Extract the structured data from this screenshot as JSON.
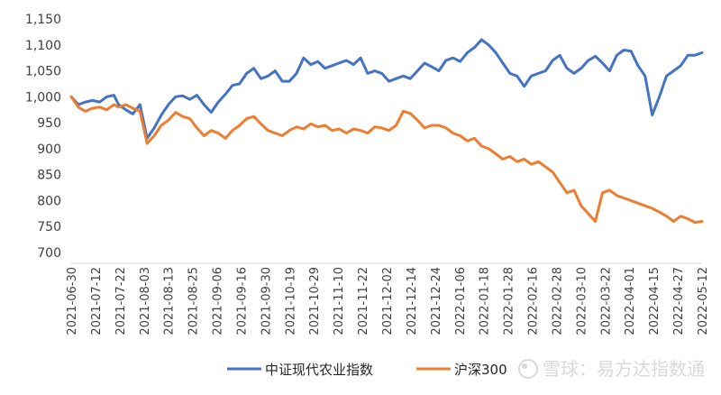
{
  "watermark": {
    "text": "雪球：易方达指数通",
    "icon": "snowball-logo-icon"
  },
  "chart_data": {
    "type": "line",
    "title": "",
    "xlabel": "",
    "ylabel": "",
    "ylim": [
      700,
      1150
    ],
    "yticks": [
      "1,150",
      "1,100",
      "1,050",
      "1,000",
      "950",
      "900",
      "850",
      "800",
      "750",
      "700"
    ],
    "ytick_values": [
      1150,
      1100,
      1050,
      1000,
      950,
      900,
      850,
      800,
      750,
      700
    ],
    "x_tick_labels": [
      "2021-06-30",
      "2021-07-12",
      "2021-07-22",
      "2021-08-03",
      "2021-08-13",
      "2021-08-25",
      "2021-09-06",
      "2021-09-16",
      "2021-09-30",
      "2021-10-19",
      "2021-10-29",
      "2021-11-10",
      "2021-11-22",
      "2021-12-02",
      "2021-12-14",
      "2021-12-24",
      "2022-01-06",
      "2022-01-18",
      "2022-01-28",
      "2022-02-16",
      "2022-02-28",
      "2022-03-10",
      "2022-03-22",
      "2022-04-01",
      "2022-04-15",
      "2022-04-27",
      "2022-05-12"
    ],
    "grid": false,
    "legend_position": "bottom-center",
    "x_range": [
      0,
      26.6
    ],
    "series": [
      {
        "name": "中证现代农业指数",
        "color": "#4472C4",
        "points": [
          [
            0,
            1000
          ],
          [
            0.3,
            985
          ],
          [
            0.6,
            990
          ],
          [
            0.9,
            993
          ],
          [
            1.2,
            990
          ],
          [
            1.5,
            1000
          ],
          [
            1.8,
            1003
          ],
          [
            2.0,
            985
          ],
          [
            2.3,
            975
          ],
          [
            2.6,
            967
          ],
          [
            2.9,
            985
          ],
          [
            3.2,
            920
          ],
          [
            3.5,
            940
          ],
          [
            3.8,
            965
          ],
          [
            4.1,
            985
          ],
          [
            4.4,
            1000
          ],
          [
            4.7,
            1002
          ],
          [
            5.0,
            995
          ],
          [
            5.3,
            1003
          ],
          [
            5.6,
            985
          ],
          [
            5.9,
            970
          ],
          [
            6.2,
            990
          ],
          [
            6.5,
            1005
          ],
          [
            6.8,
            1022
          ],
          [
            7.1,
            1025
          ],
          [
            7.4,
            1045
          ],
          [
            7.7,
            1055
          ],
          [
            8.0,
            1035
          ],
          [
            8.3,
            1040
          ],
          [
            8.6,
            1050
          ],
          [
            8.9,
            1030
          ],
          [
            9.2,
            1030
          ],
          [
            9.5,
            1045
          ],
          [
            9.8,
            1075
          ],
          [
            10.1,
            1062
          ],
          [
            10.4,
            1068
          ],
          [
            10.7,
            1055
          ],
          [
            11.0,
            1060
          ],
          [
            11.3,
            1065
          ],
          [
            11.6,
            1070
          ],
          [
            11.9,
            1062
          ],
          [
            12.2,
            1075
          ],
          [
            12.5,
            1045
          ],
          [
            12.8,
            1050
          ],
          [
            13.1,
            1045
          ],
          [
            13.4,
            1030
          ],
          [
            13.7,
            1035
          ],
          [
            14.0,
            1040
          ],
          [
            14.3,
            1035
          ],
          [
            14.6,
            1050
          ],
          [
            14.9,
            1065
          ],
          [
            15.2,
            1058
          ],
          [
            15.5,
            1050
          ],
          [
            15.8,
            1070
          ],
          [
            16.1,
            1075
          ],
          [
            16.4,
            1068
          ],
          [
            16.7,
            1085
          ],
          [
            17.0,
            1095
          ],
          [
            17.3,
            1110
          ],
          [
            17.6,
            1100
          ],
          [
            17.9,
            1085
          ],
          [
            18.2,
            1065
          ],
          [
            18.5,
            1045
          ],
          [
            18.8,
            1040
          ],
          [
            19.1,
            1020
          ],
          [
            19.4,
            1040
          ],
          [
            19.7,
            1045
          ],
          [
            20.0,
            1050
          ],
          [
            20.3,
            1070
          ],
          [
            20.6,
            1080
          ],
          [
            20.9,
            1055
          ],
          [
            21.2,
            1045
          ],
          [
            21.5,
            1055
          ],
          [
            21.8,
            1070
          ],
          [
            22.1,
            1078
          ],
          [
            22.4,
            1065
          ],
          [
            22.7,
            1050
          ],
          [
            23.0,
            1080
          ],
          [
            23.3,
            1090
          ],
          [
            23.6,
            1088
          ],
          [
            23.9,
            1060
          ],
          [
            24.2,
            1040
          ],
          [
            24.5,
            965
          ],
          [
            24.8,
            1000
          ],
          [
            25.1,
            1040
          ],
          [
            25.4,
            1050
          ],
          [
            25.7,
            1060
          ],
          [
            26.0,
            1080
          ],
          [
            26.3,
            1080
          ],
          [
            26.6,
            1085
          ]
        ]
      },
      {
        "name": "沪深300",
        "color": "#ED7D31",
        "points": [
          [
            0,
            1000
          ],
          [
            0.3,
            980
          ],
          [
            0.6,
            972
          ],
          [
            0.9,
            978
          ],
          [
            1.2,
            980
          ],
          [
            1.5,
            975
          ],
          [
            1.8,
            985
          ],
          [
            2.0,
            980
          ],
          [
            2.3,
            985
          ],
          [
            2.6,
            978
          ],
          [
            2.9,
            972
          ],
          [
            3.2,
            910
          ],
          [
            3.5,
            925
          ],
          [
            3.8,
            945
          ],
          [
            4.1,
            955
          ],
          [
            4.4,
            970
          ],
          [
            4.7,
            962
          ],
          [
            5.0,
            958
          ],
          [
            5.3,
            940
          ],
          [
            5.6,
            925
          ],
          [
            5.9,
            935
          ],
          [
            6.2,
            930
          ],
          [
            6.5,
            920
          ],
          [
            6.8,
            935
          ],
          [
            7.1,
            945
          ],
          [
            7.4,
            958
          ],
          [
            7.7,
            962
          ],
          [
            8.0,
            948
          ],
          [
            8.3,
            935
          ],
          [
            8.6,
            930
          ],
          [
            8.9,
            925
          ],
          [
            9.2,
            935
          ],
          [
            9.5,
            942
          ],
          [
            9.8,
            938
          ],
          [
            10.1,
            948
          ],
          [
            10.4,
            942
          ],
          [
            10.7,
            945
          ],
          [
            11.0,
            935
          ],
          [
            11.3,
            938
          ],
          [
            11.6,
            930
          ],
          [
            11.9,
            938
          ],
          [
            12.2,
            935
          ],
          [
            12.5,
            930
          ],
          [
            12.8,
            942
          ],
          [
            13.1,
            940
          ],
          [
            13.4,
            935
          ],
          [
            13.7,
            945
          ],
          [
            14.0,
            972
          ],
          [
            14.3,
            968
          ],
          [
            14.6,
            955
          ],
          [
            14.9,
            940
          ],
          [
            15.2,
            945
          ],
          [
            15.5,
            945
          ],
          [
            15.8,
            940
          ],
          [
            16.1,
            930
          ],
          [
            16.4,
            925
          ],
          [
            16.7,
            915
          ],
          [
            17.0,
            920
          ],
          [
            17.3,
            905
          ],
          [
            17.6,
            900
          ],
          [
            17.9,
            890
          ],
          [
            18.2,
            880
          ],
          [
            18.5,
            885
          ],
          [
            18.8,
            875
          ],
          [
            19.1,
            880
          ],
          [
            19.4,
            870
          ],
          [
            19.7,
            875
          ],
          [
            20.0,
            865
          ],
          [
            20.3,
            855
          ],
          [
            20.6,
            835
          ],
          [
            20.9,
            815
          ],
          [
            21.2,
            820
          ],
          [
            21.5,
            790
          ],
          [
            21.8,
            775
          ],
          [
            22.1,
            760
          ],
          [
            22.4,
            815
          ],
          [
            22.7,
            820
          ],
          [
            23.0,
            810
          ],
          [
            23.3,
            805
          ],
          [
            23.6,
            800
          ],
          [
            23.9,
            795
          ],
          [
            24.2,
            790
          ],
          [
            24.5,
            785
          ],
          [
            24.8,
            778
          ],
          [
            25.1,
            770
          ],
          [
            25.4,
            760
          ],
          [
            25.7,
            770
          ],
          [
            26.0,
            765
          ],
          [
            26.3,
            758
          ],
          [
            26.6,
            760
          ]
        ]
      }
    ]
  }
}
